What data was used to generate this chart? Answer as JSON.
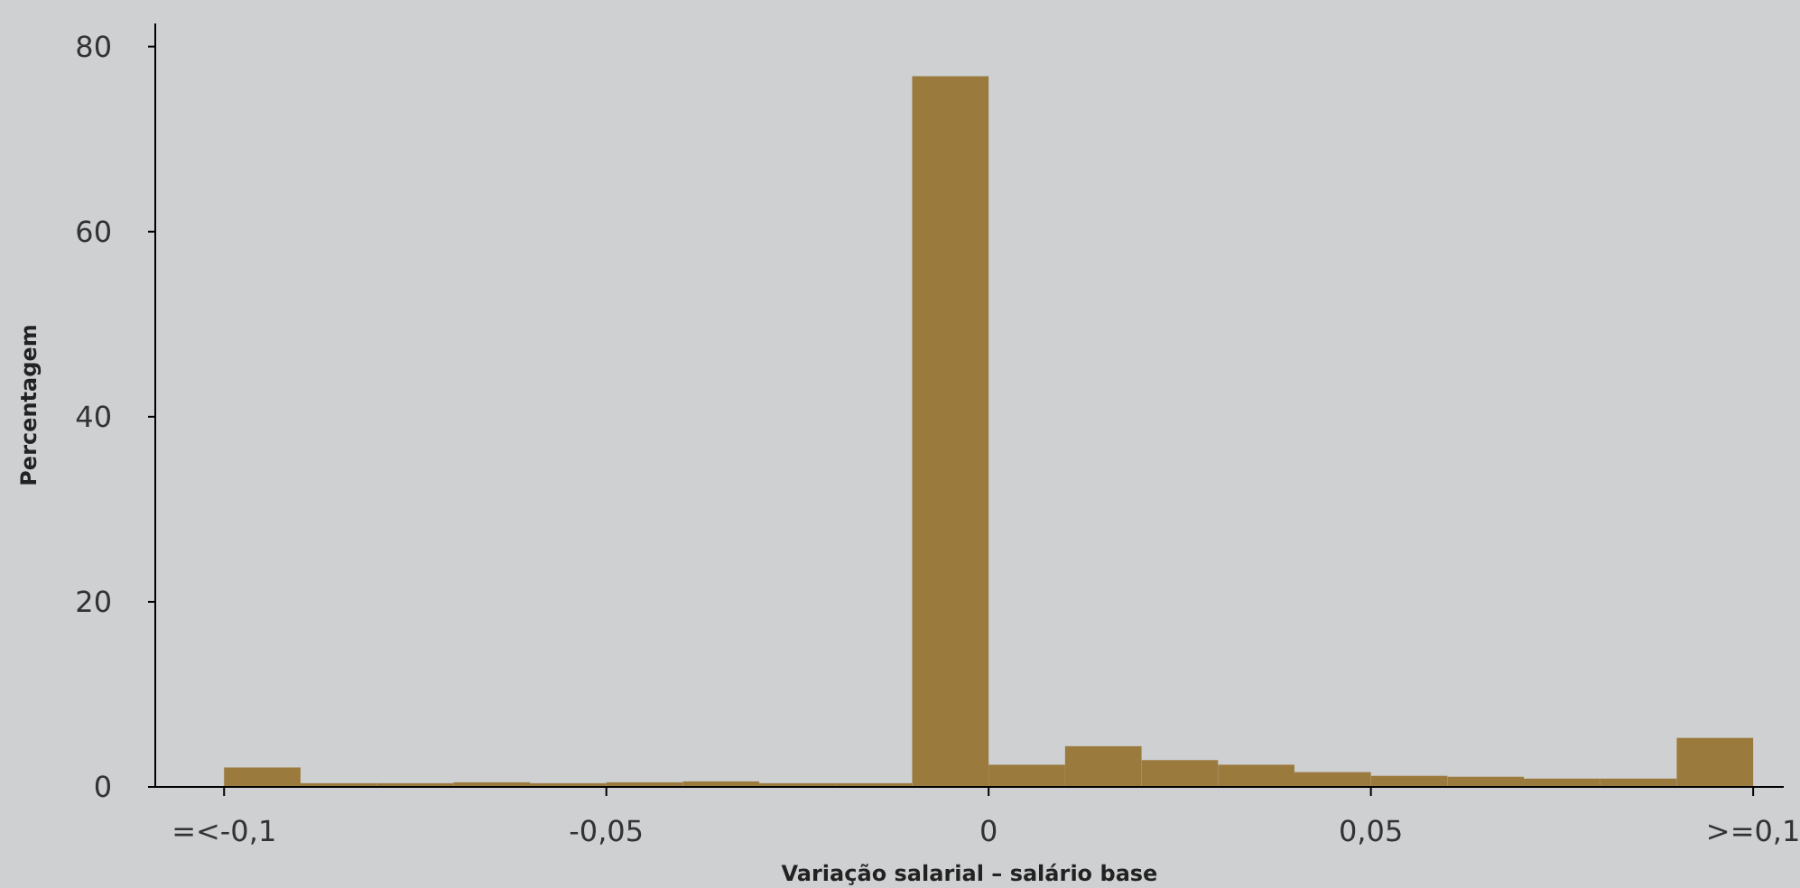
{
  "chart_data": {
    "type": "histogram",
    "xlabel": "Variação salarial – salário base",
    "ylabel": "Percentagem",
    "bins": [
      -0.1,
      -0.09,
      -0.08,
      -0.07,
      -0.06,
      -0.05,
      -0.04,
      -0.03,
      -0.02,
      -0.01,
      0,
      0.01,
      0.02,
      0.03,
      0.04,
      0.05,
      0.06,
      0.07,
      0.08,
      0.09,
      0.1
    ],
    "values": [
      2.1,
      0.4,
      0.4,
      0.5,
      0.4,
      0.5,
      0.6,
      0.4,
      0.4,
      76.8,
      2.4,
      4.4,
      2.9,
      2.4,
      1.6,
      1.2,
      1.1,
      0.9,
      0.9,
      5.3
    ],
    "color": "#9b7b3d",
    "xlim": [
      -0.109,
      0.104
    ],
    "ylim": [
      0,
      82.5
    ],
    "xticks": [
      {
        "value": -0.1,
        "label": "=<-0,1"
      },
      {
        "value": -0.05,
        "label": "-0,05"
      },
      {
        "value": 0,
        "label": "0"
      },
      {
        "value": 0.05,
        "label": "0,05"
      },
      {
        "value": 0.1,
        "label": ">=0,1"
      }
    ],
    "yticks": [
      0,
      20,
      40,
      60,
      80
    ],
    "grid": false
  }
}
